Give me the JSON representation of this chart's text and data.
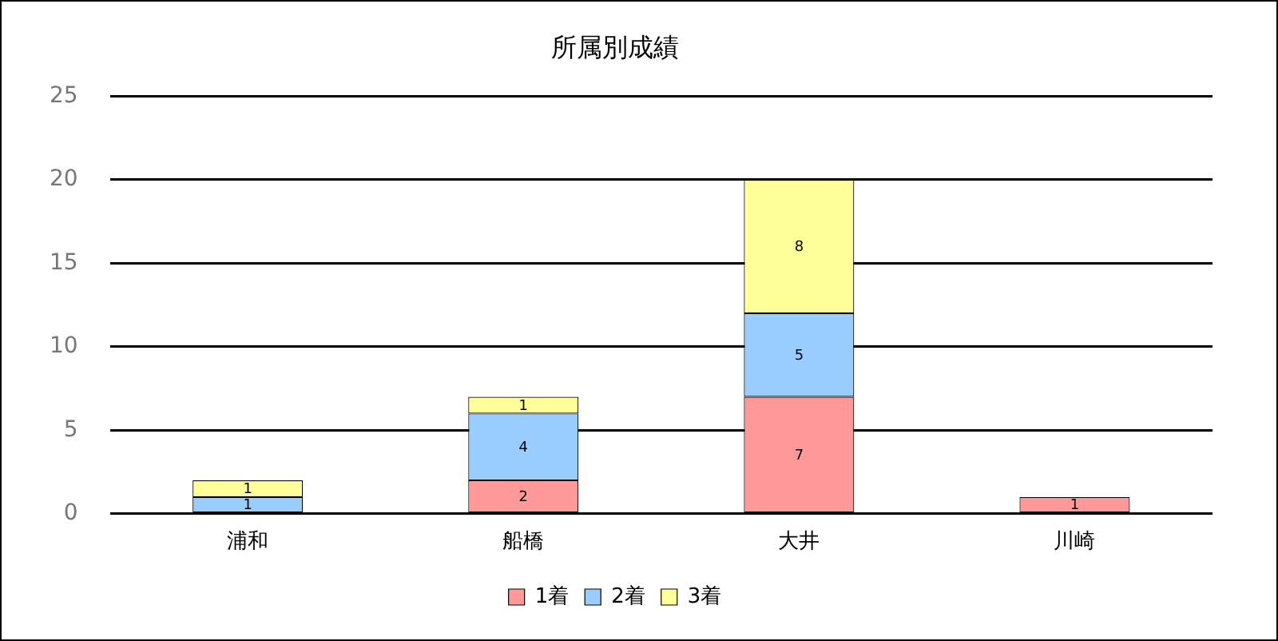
{
  "chart_data": {
    "type": "bar",
    "title": "所属別成績",
    "categories": [
      "浦和",
      "船橋",
      "大井",
      "川崎"
    ],
    "stacked": true,
    "series": [
      {
        "name": "1着",
        "color": "#ff9999",
        "values": [
          0,
          2,
          7,
          1
        ],
        "value_labels": [
          null,
          "2",
          "7",
          "1"
        ]
      },
      {
        "name": "2着",
        "color": "#99ccff",
        "values": [
          1,
          4,
          5,
          0
        ],
        "value_labels": [
          "1",
          "4",
          "5",
          null
        ]
      },
      {
        "name": "3着",
        "color": "#ffff99",
        "values": [
          1,
          1,
          8,
          0
        ],
        "value_labels": [
          "1",
          "1",
          "8",
          null
        ]
      }
    ],
    "ylim": [
      0,
      25
    ],
    "yticks": [
      0,
      5,
      10,
      15,
      20,
      25
    ],
    "grid": "y",
    "legend": "bottom"
  }
}
